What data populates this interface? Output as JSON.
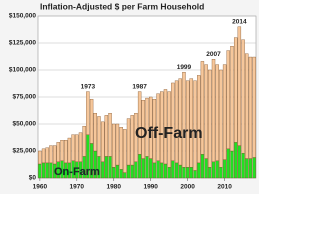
{
  "chart_data": {
    "type": "stacked-bar",
    "title": "Inflation-Adjusted $ per Farm Household",
    "x": [
      1960,
      1961,
      1962,
      1963,
      1964,
      1965,
      1966,
      1967,
      1968,
      1969,
      1970,
      1971,
      1972,
      1973,
      1974,
      1975,
      1976,
      1977,
      1978,
      1979,
      1980,
      1981,
      1982,
      1983,
      1984,
      1985,
      1986,
      1987,
      1988,
      1989,
      1990,
      1991,
      1992,
      1993,
      1994,
      1995,
      1996,
      1997,
      1998,
      1999,
      2000,
      2001,
      2002,
      2003,
      2004,
      2005,
      2006,
      2007,
      2008,
      2009,
      2010,
      2011,
      2012,
      2013,
      2014,
      2015,
      2016,
      2017,
      2018
    ],
    "series": [
      {
        "name": "On-Farm",
        "color": "#22e022",
        "values": [
          13000,
          14000,
          14000,
          14000,
          13000,
          15000,
          16000,
          14000,
          14000,
          16000,
          15000,
          15000,
          20000,
          40000,
          32000,
          25000,
          20000,
          15000,
          20000,
          20000,
          10000,
          12000,
          8000,
          5000,
          12000,
          12000,
          15000,
          22000,
          18000,
          20000,
          18000,
          14000,
          16000,
          14000,
          13000,
          10000,
          16000,
          14000,
          12000,
          10000,
          10000,
          10000,
          7000,
          14000,
          22000,
          18000,
          10000,
          15000,
          16000,
          10000,
          17000,
          27000,
          25000,
          33000,
          30000,
          23000,
          18000,
          18000,
          19000
        ]
      },
      {
        "name": "Off-Farm",
        "color": "#f6c79b",
        "values": [
          12000,
          13000,
          14000,
          16000,
          17000,
          18000,
          19000,
          21000,
          23000,
          24000,
          25000,
          27000,
          28000,
          40000,
          41000,
          35000,
          37000,
          37000,
          38000,
          40000,
          40000,
          38000,
          39000,
          40000,
          43000,
          46000,
          45000,
          58000,
          54000,
          54000,
          57000,
          59000,
          62000,
          66000,
          69000,
          70000,
          72000,
          76000,
          80000,
          88000,
          80000,
          82000,
          83000,
          81000,
          86000,
          87000,
          90000,
          95000,
          89000,
          90000,
          88000,
          91000,
          97000,
          97000,
          110000,
          105000,
          97000,
          94000,
          93000
        ]
      }
    ],
    "annotations": [
      "1973",
      "1987",
      "1999",
      "2007",
      "2014"
    ],
    "xlim": [
      1959.5,
      2018.5
    ],
    "xticks": [
      1960,
      1970,
      1980,
      1990,
      2000,
      2010
    ],
    "ylim": [
      0,
      150000
    ],
    "yticks": [
      {
        "value": 0,
        "label": "$0"
      },
      {
        "value": 25000,
        "label": "$25,000"
      },
      {
        "value": 50000,
        "label": "$50,000"
      },
      {
        "value": 75000,
        "label": "$75,000"
      },
      {
        "value": 100000,
        "label": "$100,000"
      },
      {
        "value": 125000,
        "label": "$125,000"
      },
      {
        "value": 150000,
        "label": "$150,000"
      }
    ],
    "grid": true
  }
}
